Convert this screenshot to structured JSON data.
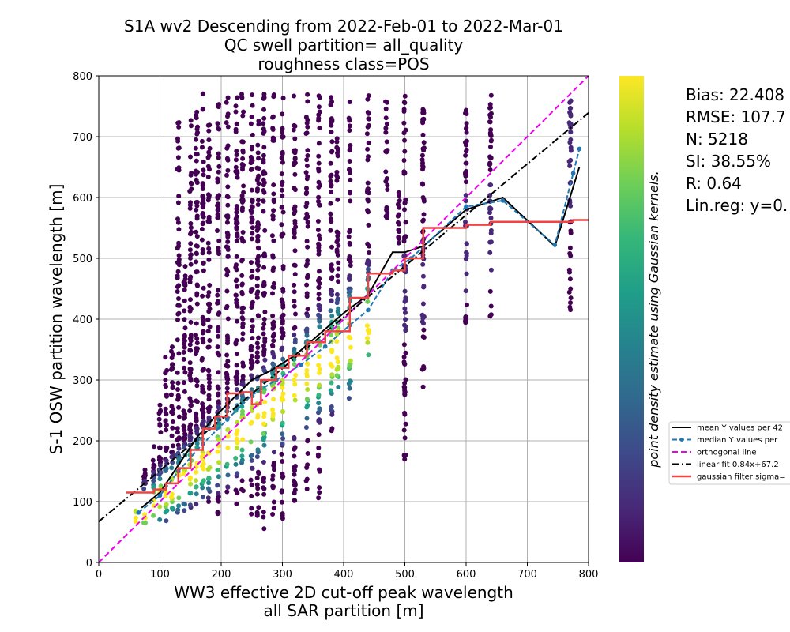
{
  "chart_data": {
    "type": "scatter",
    "title_lines": [
      "S1A wv2 Descending from 2022-Feb-01 to 2022-Mar-01",
      "QC swell partition= all_quality",
      "roughness class=POS"
    ],
    "xlabel_lines": [
      "WW3 effective 2D cut-off peak wavelength",
      "all SAR partition [m]"
    ],
    "ylabel": "S-1 OSW partition wavelength [m]",
    "xlim": [
      0,
      800
    ],
    "ylim": [
      0,
      800
    ],
    "xticks": [
      0,
      100,
      200,
      300,
      400,
      500,
      600,
      700,
      800
    ],
    "yticks": [
      0,
      100,
      200,
      300,
      400,
      500,
      600,
      700,
      800
    ],
    "grid": true,
    "colorbar": {
      "label": "point density estimate using Gaussian kernels.",
      "colormap": [
        "#440154",
        "#482878",
        "#3e4989",
        "#31688e",
        "#26828e",
        "#1f9e89",
        "#35b779",
        "#6ece58",
        "#b5de2b",
        "#fde725"
      ]
    },
    "stats": [
      "Bias: 22.408",
      "RMSE: 107.7",
      "N: 5218",
      "SI: 38.55%",
      "R: 0.64",
      "Lin.reg: y=0."
    ],
    "legend": {
      "placement": "right",
      "entries": [
        {
          "label": "mean Y values per 42",
          "color": "#000000",
          "style": "solid"
        },
        {
          "label": "median Y values per",
          "color": "#1f77b4",
          "style": "dashed-dot-marker"
        },
        {
          "label": "orthogonal line",
          "color": "#ee00ee",
          "style": "dashed"
        },
        {
          "label": "linear fit 0.84x+67.2",
          "color": "#000000",
          "style": "dashdot"
        },
        {
          "label": "gaussian filter sigma=",
          "color": "#ef4444",
          "style": "thick"
        }
      ]
    },
    "scatter_columns": [
      {
        "x": 60,
        "ymin": 60,
        "ymax": 85
      },
      {
        "x": 75,
        "ymin": 58,
        "ymax": 160
      },
      {
        "x": 90,
        "ymin": 60,
        "ymax": 200
      },
      {
        "x": 100,
        "ymin": 70,
        "ymax": 270
      },
      {
        "x": 110,
        "ymin": 65,
        "ymax": 340
      },
      {
        "x": 120,
        "ymin": 75,
        "ymax": 360
      },
      {
        "x": 130,
        "ymin": 80,
        "ymax": 725
      },
      {
        "x": 140,
        "ymin": 85,
        "ymax": 500
      },
      {
        "x": 150,
        "ymin": 90,
        "ymax": 770
      },
      {
        "x": 160,
        "ymin": 95,
        "ymax": 770
      },
      {
        "x": 170,
        "ymin": 85,
        "ymax": 775
      },
      {
        "x": 180,
        "ymin": 100,
        "ymax": 720
      },
      {
        "x": 195,
        "ymin": 80,
        "ymax": 770
      },
      {
        "x": 210,
        "ymin": 100,
        "ymax": 770
      },
      {
        "x": 225,
        "ymin": 95,
        "ymax": 765
      },
      {
        "x": 235,
        "ymin": 110,
        "ymax": 770
      },
      {
        "x": 250,
        "ymin": 65,
        "ymax": 770
      },
      {
        "x": 260,
        "ymin": 70,
        "ymax": 730
      },
      {
        "x": 270,
        "ymin": 55,
        "ymax": 770
      },
      {
        "x": 285,
        "ymin": 70,
        "ymax": 770
      },
      {
        "x": 300,
        "ymin": 70,
        "ymax": 770
      },
      {
        "x": 320,
        "ymin": 90,
        "ymax": 770
      },
      {
        "x": 340,
        "ymin": 110,
        "ymax": 770
      },
      {
        "x": 360,
        "ymin": 90,
        "ymax": 770
      },
      {
        "x": 380,
        "ymin": 210,
        "ymax": 770
      },
      {
        "x": 390,
        "ymin": 285,
        "ymax": 700
      },
      {
        "x": 410,
        "ymin": 270,
        "ymax": 770
      },
      {
        "x": 440,
        "ymin": 320,
        "ymax": 770
      },
      {
        "x": 470,
        "ymin": 560,
        "ymax": 770
      },
      {
        "x": 490,
        "ymin": 520,
        "ymax": 620
      },
      {
        "x": 500,
        "ymin": 160,
        "ymax": 770
      },
      {
        "x": 530,
        "ymin": 285,
        "ymax": 770
      },
      {
        "x": 600,
        "ymin": 380,
        "ymax": 770
      },
      {
        "x": 640,
        "ymin": 390,
        "ymax": 770
      },
      {
        "x": 770,
        "ymin": 410,
        "ymax": 770
      }
    ],
    "series": [
      {
        "name": "mean Y values per 42",
        "points": [
          [
            70,
            90
          ],
          [
            100,
            115
          ],
          [
            130,
            160
          ],
          [
            160,
            205
          ],
          [
            190,
            240
          ],
          [
            220,
            270
          ],
          [
            250,
            300
          ],
          [
            280,
            315
          ],
          [
            320,
            340
          ],
          [
            360,
            375
          ],
          [
            400,
            410
          ],
          [
            440,
            440
          ],
          [
            480,
            510
          ],
          [
            500,
            510
          ],
          [
            530,
            520
          ],
          [
            600,
            580
          ],
          [
            660,
            600
          ],
          [
            745,
            520
          ],
          [
            785,
            650
          ]
        ]
      },
      {
        "name": "median Y values per",
        "points": [
          [
            65,
            82
          ],
          [
            100,
            110
          ],
          [
            130,
            150
          ],
          [
            170,
            195
          ],
          [
            210,
            235
          ],
          [
            250,
            275
          ],
          [
            290,
            300
          ],
          [
            330,
            325
          ],
          [
            370,
            355
          ],
          [
            410,
            390
          ],
          [
            440,
            415
          ],
          [
            480,
            480
          ],
          [
            510,
            500
          ],
          [
            600,
            585
          ],
          [
            660,
            595
          ],
          [
            745,
            522
          ],
          [
            775,
            640
          ],
          [
            785,
            680
          ]
        ]
      },
      {
        "name": "orthogonal line",
        "points": [
          [
            0,
            0
          ],
          [
            800,
            800
          ]
        ]
      },
      {
        "name": "linear fit 0.84x+67.2",
        "points": [
          [
            0,
            67.2
          ],
          [
            800,
            739.2
          ]
        ]
      },
      {
        "name": "gaussian filter sigma=",
        "points": [
          [
            45,
            115
          ],
          [
            65,
            115
          ],
          [
            90,
            120
          ],
          [
            110,
            130
          ],
          [
            130,
            155
          ],
          [
            150,
            185
          ],
          [
            170,
            220
          ],
          [
            190,
            240
          ],
          [
            210,
            278
          ],
          [
            235,
            280
          ],
          [
            250,
            260
          ],
          [
            265,
            300
          ],
          [
            290,
            320
          ],
          [
            310,
            340
          ],
          [
            340,
            362
          ],
          [
            370,
            380
          ],
          [
            410,
            435
          ],
          [
            440,
            475
          ],
          [
            480,
            480
          ],
          [
            500,
            500
          ],
          [
            530,
            550
          ],
          [
            600,
            555
          ],
          [
            640,
            560
          ],
          [
            700,
            560
          ],
          [
            775,
            563
          ],
          [
            800,
            563
          ]
        ]
      }
    ]
  }
}
